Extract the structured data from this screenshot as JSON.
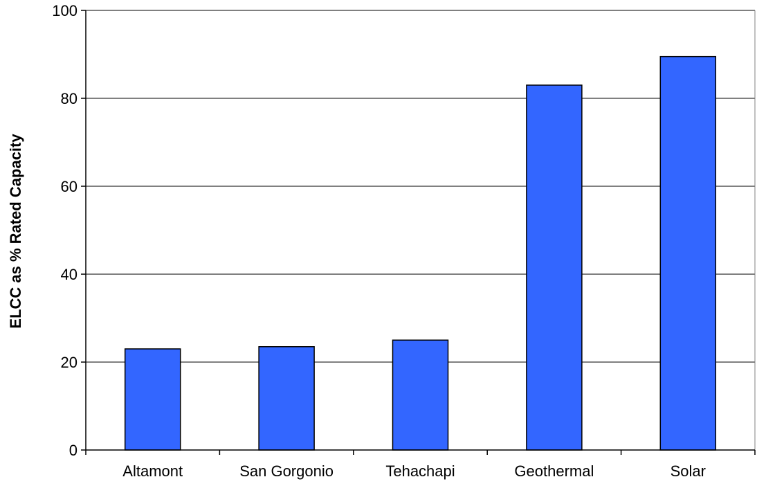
{
  "chart_data": {
    "type": "bar",
    "title": "",
    "xlabel": "",
    "ylabel": "ELCC as % Rated Capacity",
    "categories": [
      "Altamont",
      "San Gorgonio",
      "Tehachapi",
      "Geothermal",
      "Solar"
    ],
    "values": [
      23,
      23.5,
      25,
      83,
      89.5
    ],
    "ylim": [
      0,
      100
    ],
    "yticks": [
      0,
      20,
      40,
      60,
      80,
      100
    ],
    "grid": "horizontal major gridlines",
    "legend": "none",
    "bar_color": "#3366ff",
    "bar_edge_color": "#000000"
  }
}
